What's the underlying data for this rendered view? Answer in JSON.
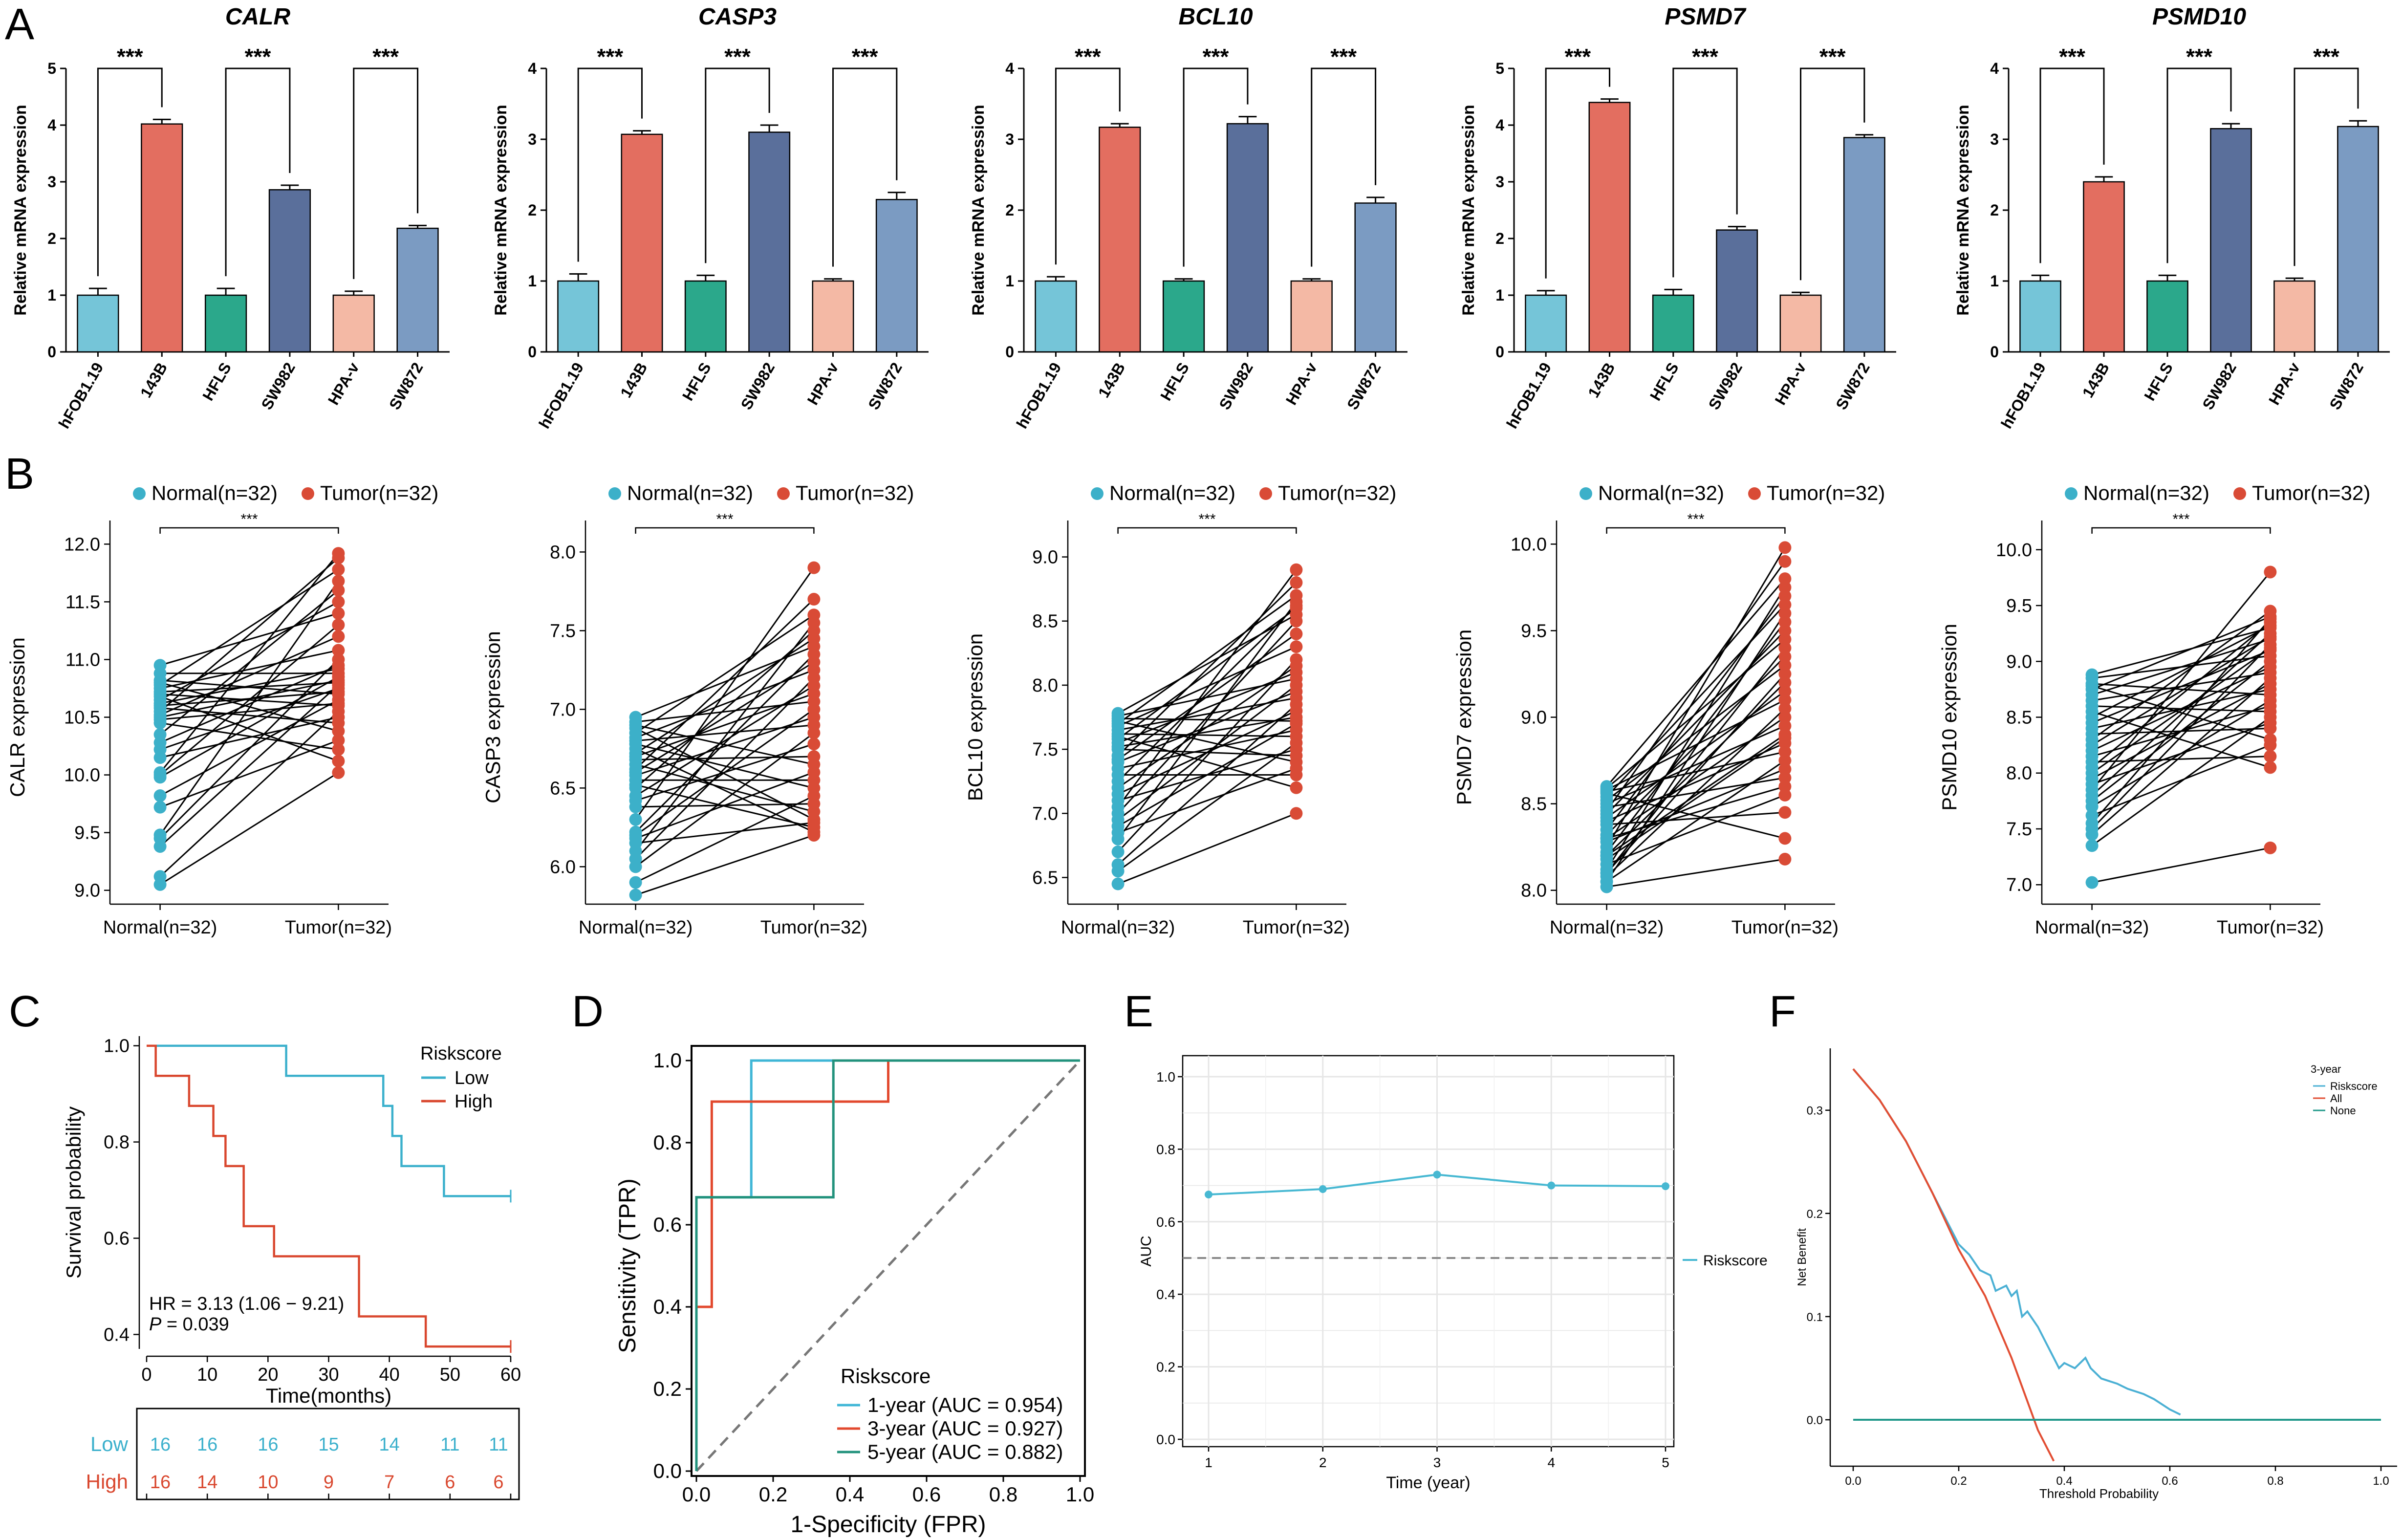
{
  "panel_letters": {
    "a": "A",
    "b": "B",
    "c": "C",
    "d": "D",
    "e": "E",
    "f": "F"
  },
  "colors": {
    "bar_fills": [
      "#75C5D8",
      "#E36E60",
      "#2BA88B",
      "#5A6F9B",
      "#F4B9A5",
      "#7B9BC2"
    ],
    "normal": "#3CB0C9",
    "tumor": "#D94B36",
    "km_low": "#3BB0CC",
    "km_high": "#D9472E",
    "roc1": "#3FB6D6",
    "roc3": "#E2492E",
    "roc5": "#22927C",
    "auc_line": "#47B8D2",
    "dca_risk": "#4BB0D4",
    "dca_all": "#E24E33",
    "dca_none": "#21988A"
  },
  "chart_data": [
    {
      "id": "A",
      "type": "bar",
      "ylabel": "Relative mRNA expression",
      "categories": [
        "hFOB1.19",
        "143B",
        "HFLS",
        "SW982",
        "HPA-v",
        "SW872"
      ],
      "significance": "***",
      "panels": [
        {
          "title": "CALR",
          "ylim": [
            0,
            5
          ],
          "yticks": [
            "0",
            "1",
            "2",
            "3",
            "4",
            "5"
          ],
          "values": [
            1.0,
            4.02,
            1.0,
            2.86,
            1.0,
            2.18
          ],
          "errors": [
            0.12,
            0.08,
            0.12,
            0.08,
            0.07,
            0.05
          ]
        },
        {
          "title": "CASP3",
          "ylim": [
            0,
            4
          ],
          "yticks": [
            "0",
            "1",
            "2",
            "3",
            "4"
          ],
          "values": [
            1.0,
            3.07,
            1.0,
            3.1,
            1.0,
            2.15
          ],
          "errors": [
            0.1,
            0.05,
            0.08,
            0.1,
            0.03,
            0.1
          ]
        },
        {
          "title": "BCL10",
          "ylim": [
            0,
            4
          ],
          "yticks": [
            "0",
            "1",
            "2",
            "3",
            "4"
          ],
          "values": [
            1.0,
            3.17,
            1.0,
            3.22,
            1.0,
            2.1
          ],
          "errors": [
            0.06,
            0.05,
            0.03,
            0.1,
            0.03,
            0.08
          ]
        },
        {
          "title": "PSMD7",
          "ylim": [
            0,
            5
          ],
          "yticks": [
            "0",
            "1",
            "2",
            "3",
            "4",
            "5"
          ],
          "values": [
            1.0,
            4.4,
            1.0,
            2.15,
            1.0,
            3.78
          ],
          "errors": [
            0.08,
            0.06,
            0.1,
            0.06,
            0.05,
            0.05
          ]
        },
        {
          "title": "PSMD10",
          "ylim": [
            0,
            4
          ],
          "yticks": [
            "0",
            "1",
            "2",
            "3",
            "4"
          ],
          "values": [
            1.0,
            2.4,
            1.0,
            3.15,
            1.0,
            3.18
          ],
          "errors": [
            0.08,
            0.07,
            0.08,
            0.07,
            0.04,
            0.08
          ]
        }
      ]
    },
    {
      "id": "B",
      "type": "scatter",
      "legend": [
        "Normal(n=32)",
        "Tumor(n=32)"
      ],
      "xcategories": [
        "Normal(n=32)",
        "Tumor(n=32)"
      ],
      "significance": "***",
      "panels": [
        {
          "ylabel": "CALR expression",
          "yticks": [
            "9.0",
            "9.5",
            "10.0",
            "10.5",
            "11.0",
            "11.5",
            "12.0"
          ],
          "yrange": [
            9.0,
            12.0
          ],
          "normal": [
            9.05,
            9.12,
            9.38,
            9.45,
            9.48,
            9.72,
            9.82,
            9.98,
            10.0,
            10.02,
            10.15,
            10.22,
            10.28,
            10.35,
            10.45,
            10.48,
            10.5,
            10.52,
            10.55,
            10.58,
            10.6,
            10.62,
            10.65,
            10.68,
            10.7,
            10.72,
            10.75,
            10.78,
            10.8,
            10.82,
            10.88,
            10.95
          ],
          "tumor": [
            10.02,
            10.12,
            10.22,
            10.3,
            10.38,
            10.45,
            10.5,
            10.55,
            10.6,
            10.62,
            10.65,
            10.7,
            10.72,
            10.75,
            10.78,
            10.8,
            10.82,
            10.85,
            10.88,
            10.92,
            10.95,
            11.0,
            11.08,
            11.2,
            11.3,
            11.4,
            11.5,
            11.6,
            11.68,
            11.78,
            11.88,
            11.92
          ]
        },
        {
          "ylabel": "CASP3 expression",
          "yticks": [
            "6.0",
            "6.5",
            "7.0",
            "7.5",
            "8.0"
          ],
          "yrange": [
            5.85,
            8.05
          ],
          "normal": [
            5.82,
            5.9,
            6.0,
            6.05,
            6.1,
            6.15,
            6.18,
            6.2,
            6.22,
            6.3,
            6.38,
            6.42,
            6.45,
            6.5,
            6.52,
            6.55,
            6.58,
            6.6,
            6.62,
            6.65,
            6.68,
            6.7,
            6.72,
            6.75,
            6.78,
            6.8,
            6.82,
            6.85,
            6.88,
            6.9,
            6.92,
            6.95
          ],
          "tumor": [
            6.2,
            6.22,
            6.25,
            6.28,
            6.3,
            6.35,
            6.4,
            6.45,
            6.5,
            6.55,
            6.6,
            6.65,
            6.7,
            6.78,
            6.85,
            6.9,
            6.95,
            7.0,
            7.05,
            7.1,
            7.15,
            7.2,
            7.25,
            7.3,
            7.35,
            7.4,
            7.45,
            7.5,
            7.55,
            7.6,
            7.7,
            7.9
          ]
        },
        {
          "ylabel": "BCL10 expression",
          "yticks": [
            "6.5",
            "7.0",
            "7.5",
            "8.0",
            "8.5",
            "9.0"
          ],
          "yrange": [
            6.4,
            9.1
          ],
          "normal": [
            6.45,
            6.55,
            6.6,
            6.7,
            6.8,
            6.85,
            6.9,
            6.95,
            7.0,
            7.05,
            7.1,
            7.15,
            7.2,
            7.25,
            7.3,
            7.35,
            7.4,
            7.42,
            7.45,
            7.5,
            7.52,
            7.55,
            7.58,
            7.6,
            7.62,
            7.65,
            7.68,
            7.7,
            7.72,
            7.74,
            7.76,
            7.78
          ],
          "tumor": [
            7.0,
            7.2,
            7.3,
            7.35,
            7.4,
            7.45,
            7.5,
            7.55,
            7.6,
            7.65,
            7.7,
            7.72,
            7.75,
            7.8,
            7.85,
            7.9,
            7.95,
            8.0,
            8.05,
            8.1,
            8.15,
            8.2,
            8.3,
            8.4,
            8.5,
            8.55,
            8.6,
            8.62,
            8.65,
            8.7,
            8.8,
            8.9
          ]
        },
        {
          "ylabel": "PSMD7 expression",
          "yticks": [
            "8.0",
            "8.5",
            "9.0",
            "9.5",
            "10.0"
          ],
          "yrange": [
            8.0,
            10.0
          ],
          "normal": [
            8.02,
            8.05,
            8.08,
            8.1,
            8.12,
            8.15,
            8.18,
            8.2,
            8.22,
            8.25,
            8.28,
            8.3,
            8.32,
            8.35,
            8.38,
            8.4,
            8.42,
            8.44,
            8.46,
            8.48,
            8.5,
            8.52,
            8.54,
            8.56,
            8.57,
            8.58,
            8.59,
            8.6,
            8.3,
            8.2,
            8.1,
            8.05
          ],
          "tumor": [
            8.18,
            8.3,
            8.45,
            8.55,
            8.6,
            8.65,
            8.7,
            8.75,
            8.8,
            8.85,
            8.88,
            8.9,
            8.95,
            9.0,
            9.05,
            9.1,
            9.15,
            9.2,
            9.25,
            9.3,
            9.35,
            9.4,
            9.45,
            9.5,
            9.55,
            9.6,
            9.65,
            9.7,
            9.75,
            9.8,
            9.9,
            9.98
          ]
        },
        {
          "ylabel": "PSMD10 expression",
          "yticks": [
            "7.0",
            "7.5",
            "8.0",
            "8.5",
            "9.0",
            "9.5",
            "10.0"
          ],
          "yrange": [
            6.95,
            10.05
          ],
          "normal": [
            7.02,
            7.35,
            7.45,
            7.5,
            7.55,
            7.62,
            7.7,
            7.75,
            7.8,
            7.85,
            7.9,
            7.95,
            8.0,
            8.05,
            8.1,
            8.15,
            8.2,
            8.25,
            8.3,
            8.35,
            8.4,
            8.45,
            8.5,
            8.55,
            8.6,
            8.65,
            8.7,
            8.75,
            8.78,
            8.8,
            8.85,
            8.88
          ],
          "tumor": [
            7.33,
            8.05,
            8.15,
            8.25,
            8.3,
            8.4,
            8.45,
            8.5,
            8.55,
            8.6,
            8.65,
            8.7,
            8.75,
            8.8,
            8.85,
            8.9,
            8.95,
            9.0,
            9.05,
            9.1,
            9.12,
            9.15,
            9.2,
            9.22,
            9.25,
            9.3,
            9.32,
            9.35,
            9.38,
            9.4,
            9.45,
            9.8
          ]
        }
      ]
    },
    {
      "id": "C",
      "type": "line",
      "subtype": "kaplan-meier",
      "xlabel": "Time(months)",
      "ylabel": "Survival probability",
      "xlim": [
        0,
        60
      ],
      "ylim": [
        0.37,
        1.02
      ],
      "xticks": [
        "0",
        "10",
        "20",
        "30",
        "40",
        "50",
        "60"
      ],
      "yticks": [
        "0.4",
        "0.6",
        "0.8",
        "1.0"
      ],
      "legend_title": "Riskscore",
      "legend": [
        "Low",
        "High"
      ],
      "hr_text": "HR = 3.13 (1.06 − 9.21)",
      "p_label": "P",
      "p_text": " = 0.039",
      "series": [
        {
          "name": "Low",
          "steps": [
            [
              0,
              1.0
            ],
            [
              23,
              0.9375
            ],
            [
              39,
              0.875
            ],
            [
              40.5,
              0.8125
            ],
            [
              42,
              0.75
            ],
            [
              49,
              0.6875
            ],
            [
              60,
              0.6875
            ]
          ]
        },
        {
          "name": "High",
          "steps": [
            [
              0,
              1.0
            ],
            [
              1.5,
              0.9375
            ],
            [
              7,
              0.875
            ],
            [
              11,
              0.8125
            ],
            [
              13,
              0.75
            ],
            [
              16,
              0.625
            ],
            [
              21,
              0.5625
            ],
            [
              35,
              0.4375
            ],
            [
              46,
              0.375
            ],
            [
              60,
              0.375
            ]
          ]
        }
      ],
      "risk_table": {
        "labels": [
          "Low",
          "High"
        ],
        "times": [
          0,
          10,
          20,
          30,
          40,
          50,
          60
        ],
        "low": [
          "16",
          "16",
          "16",
          "15",
          "14",
          "11",
          "11"
        ],
        "high": [
          "16",
          "14",
          "10",
          "9",
          "7",
          "6",
          "6"
        ]
      }
    },
    {
      "id": "D",
      "type": "line",
      "subtype": "roc",
      "xlabel": "1-Specificity (FPR)",
      "ylabel": "Sensitivity (TPR)",
      "xlim": [
        0,
        1
      ],
      "ylim": [
        0,
        1
      ],
      "xticks": [
        "0.0",
        "0.2",
        "0.4",
        "0.6",
        "0.8",
        "1.0"
      ],
      "yticks": [
        "0.0",
        "0.2",
        "0.4",
        "0.6",
        "0.8",
        "1.0"
      ],
      "legend_title": "Riskscore",
      "series": [
        {
          "name": "1-year (AUC = 0.954)",
          "points": [
            [
              0,
              0
            ],
            [
              0,
              0.667
            ],
            [
              0.143,
              0.667
            ],
            [
              0.143,
              1.0
            ],
            [
              1,
              1
            ]
          ]
        },
        {
          "name": "3-year (AUC = 0.927)",
          "points": [
            [
              0,
              0
            ],
            [
              0,
              0.4
            ],
            [
              0.04,
              0.4
            ],
            [
              0.04,
              0.9
            ],
            [
              0.5,
              0.9
            ],
            [
              0.5,
              1.0
            ],
            [
              1,
              1
            ]
          ]
        },
        {
          "name": "5-year (AUC = 0.882)",
          "points": [
            [
              0,
              0
            ],
            [
              0,
              0.667
            ],
            [
              0.357,
              0.667
            ],
            [
              0.357,
              1.0
            ],
            [
              1,
              1
            ]
          ]
        }
      ]
    },
    {
      "id": "E",
      "type": "line",
      "xlabel": "Time (year)",
      "ylabel": "AUC",
      "xticks": [
        "1",
        "2",
        "3",
        "4",
        "5"
      ],
      "yticks": [
        "0.0",
        "0.2",
        "0.4",
        "0.6",
        "0.8",
        "1.0"
      ],
      "x": [
        1,
        2,
        3,
        4,
        5
      ],
      "values": [
        0.675,
        0.69,
        0.73,
        0.7,
        0.698
      ],
      "reference": 0.5,
      "legend": [
        "Riskscore"
      ]
    },
    {
      "id": "F",
      "type": "line",
      "subtype": "decision-curve",
      "xlabel": "Threshold Probability",
      "ylabel": "Net Benefit",
      "xticks": [
        "0.0",
        "0.2",
        "0.4",
        "0.6",
        "0.8",
        "1.0"
      ],
      "yticks": [
        "0.0",
        "0.1",
        "0.2",
        "0.3"
      ],
      "xlim": [
        0,
        1
      ],
      "ylim": [
        -0.045,
        0.36
      ],
      "legend_title": "3-year",
      "legend": [
        "Riskscore",
        "All",
        "None"
      ],
      "series": [
        {
          "name": "Riskscore",
          "x": [
            0.0,
            0.05,
            0.1,
            0.15,
            0.2,
            0.22,
            0.24,
            0.26,
            0.27,
            0.29,
            0.3,
            0.31,
            0.32,
            0.33,
            0.35,
            0.36,
            0.38,
            0.39,
            0.4,
            0.42,
            0.44,
            0.45,
            0.47,
            0.5,
            0.52,
            0.55,
            0.57,
            0.6,
            0.62
          ],
          "y": [
            0.34,
            0.31,
            0.27,
            0.22,
            0.17,
            0.16,
            0.145,
            0.14,
            0.125,
            0.13,
            0.12,
            0.125,
            0.1,
            0.105,
            0.09,
            0.08,
            0.06,
            0.05,
            0.055,
            0.05,
            0.06,
            0.05,
            0.04,
            0.035,
            0.03,
            0.025,
            0.02,
            0.01,
            0.005
          ]
        },
        {
          "name": "All",
          "x": [
            0.0,
            0.05,
            0.1,
            0.15,
            0.2,
            0.25,
            0.3,
            0.35,
            0.38
          ],
          "y": [
            0.34,
            0.31,
            0.27,
            0.22,
            0.165,
            0.12,
            0.06,
            -0.01,
            -0.04
          ]
        },
        {
          "name": "None",
          "x": [
            0,
            1
          ],
          "y": [
            0,
            0
          ]
        }
      ]
    }
  ]
}
